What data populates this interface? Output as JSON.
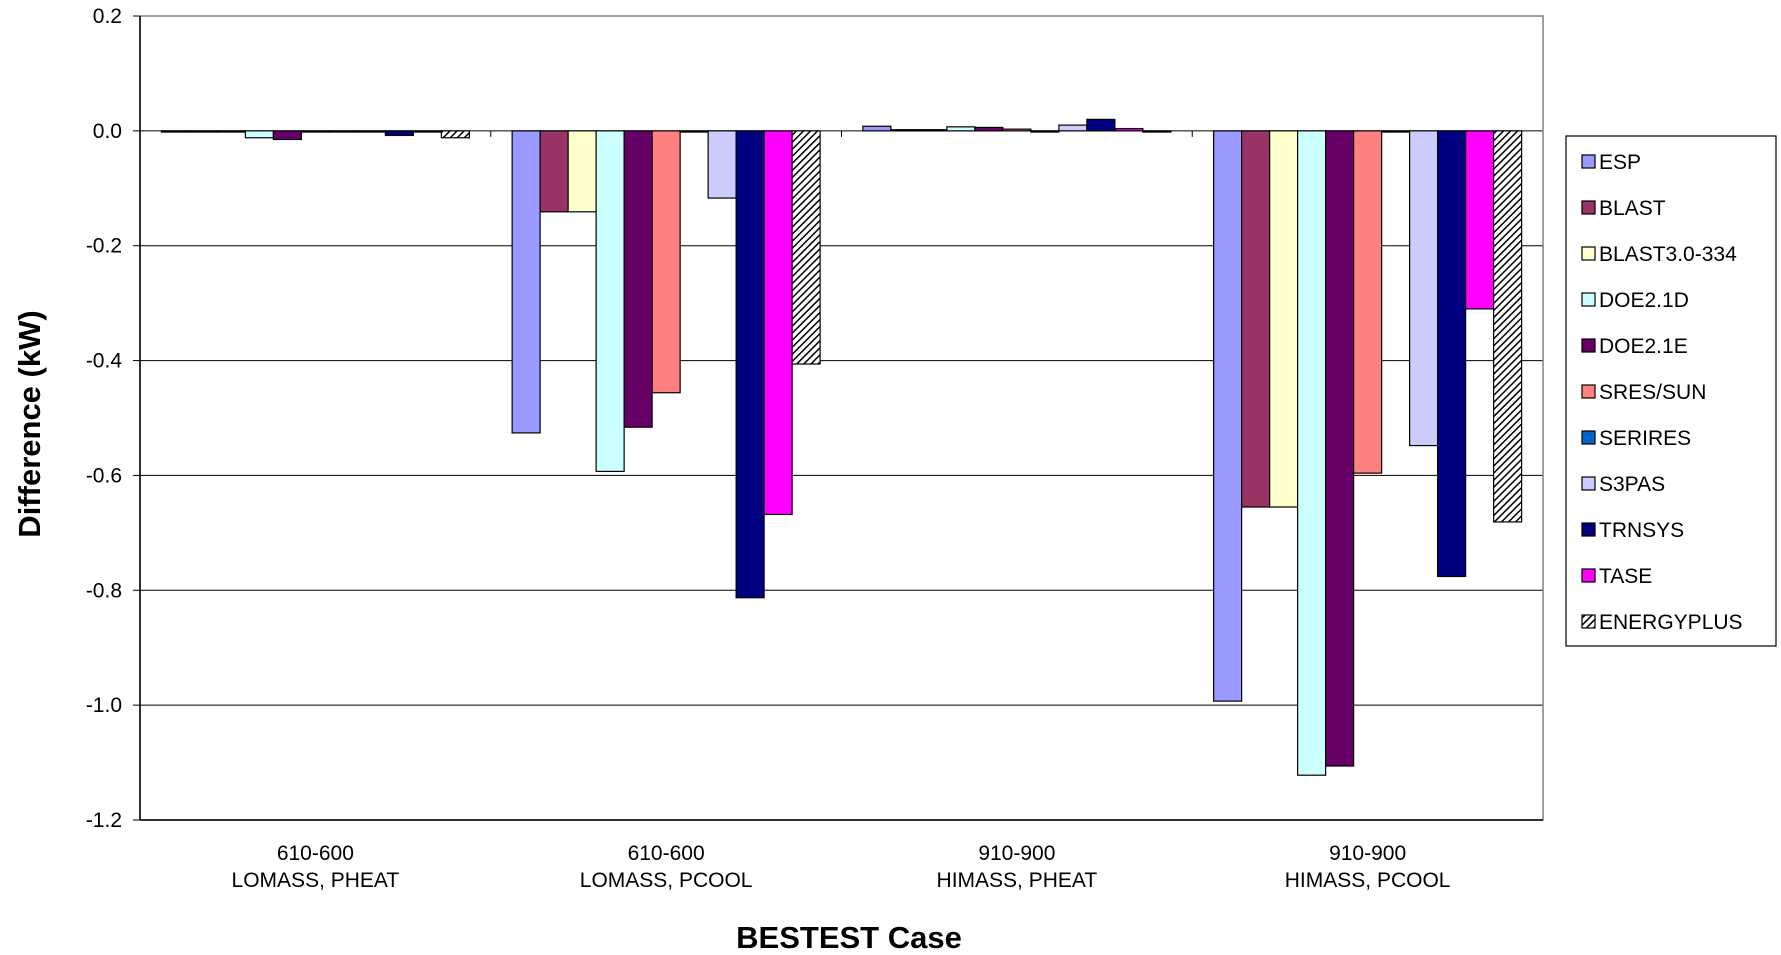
{
  "chart_data": {
    "type": "bar",
    "title": "",
    "xlabel": "BESTEST Case",
    "ylabel": "Difference (kW)",
    "ylim": [
      -1.2,
      0.2
    ],
    "yticks": [
      0.2,
      0.0,
      -0.2,
      -0.4,
      -0.6,
      -0.8,
      -1.0,
      -1.2
    ],
    "ytick_labels": [
      "0.2",
      "0.0",
      "-0.2",
      "-0.4",
      "-0.6",
      "-0.8",
      "-1.0",
      "-1.2"
    ],
    "grid": true,
    "legend_position": "right",
    "categories": [
      [
        "610-600",
        "LOMASS, PHEAT"
      ],
      [
        "610-600",
        "LOMASS, PCOOL"
      ],
      [
        "910-900",
        "HIMASS, PHEAT"
      ],
      [
        "910-900",
        "HIMASS, PCOOL"
      ]
    ],
    "series": [
      {
        "name": "ESP",
        "color": "#9999FF",
        "values": [
          0.0,
          -0.526,
          0.008,
          -0.993
        ]
      },
      {
        "name": "BLAST",
        "color": "#993366",
        "values": [
          0.0,
          -0.141,
          0.002,
          -0.655
        ]
      },
      {
        "name": "BLAST3.0-334",
        "color": "#FFFFCC",
        "values": [
          0.0,
          -0.141,
          0.002,
          -0.655
        ]
      },
      {
        "name": "DOE2.1D",
        "color": "#CCFFFF",
        "values": [
          -0.012,
          -0.593,
          0.007,
          -1.122
        ]
      },
      {
        "name": "DOE2.1E",
        "color": "#660066",
        "values": [
          -0.015,
          -0.516,
          0.006,
          -1.106
        ]
      },
      {
        "name": "SRES/SUN",
        "color": "#FF8080",
        "values": [
          0.0,
          -0.456,
          0.003,
          -0.596
        ]
      },
      {
        "name": "SERIRES",
        "color": "#0066CC",
        "values": [
          0.0,
          0.0,
          0.0,
          0.0
        ]
      },
      {
        "name": "S3PAS",
        "color": "#CCCCFF",
        "values": [
          0.0,
          -0.117,
          0.01,
          -0.548
        ]
      },
      {
        "name": "TRNSYS",
        "color": "#000080",
        "values": [
          -0.008,
          -0.813,
          0.02,
          -0.776
        ]
      },
      {
        "name": "TASE",
        "color": "#FF00FF",
        "values": [
          0.0,
          -0.668,
          0.004,
          -0.31
        ]
      },
      {
        "name": "ENERGYPLUS",
        "color": "hatch",
        "values": [
          -0.012,
          -0.406,
          -0.002,
          -0.681
        ]
      }
    ]
  }
}
